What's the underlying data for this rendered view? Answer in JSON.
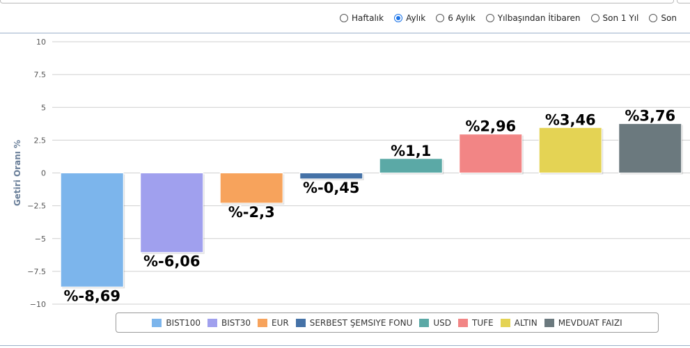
{
  "periods": [
    {
      "label": "Haftalık",
      "checked": false
    },
    {
      "label": "Aylık",
      "checked": true
    },
    {
      "label": "6 Aylık",
      "checked": false
    },
    {
      "label": "Yılbaşından İtibaren",
      "checked": false
    },
    {
      "label": "Son 1 Yıl",
      "checked": false
    },
    {
      "label": "Son",
      "checked": false
    }
  ],
  "chart_data": {
    "type": "bar",
    "ylabel": "Getiri Oranı %",
    "ylim": [
      -10,
      10
    ],
    "yticks": [
      "10",
      "7.5",
      "5",
      "2.5",
      "0",
      "−2.5",
      "−5",
      "−7.5",
      "−10"
    ],
    "grid": true,
    "legend_position": "bottom",
    "series": [
      {
        "name": "BIST100",
        "value": -8.69,
        "label": "%-8,69",
        "color": "#7cb5ec"
      },
      {
        "name": "BIST30",
        "value": -6.06,
        "label": "%-6,06",
        "color": "#a0a0ee"
      },
      {
        "name": "EUR",
        "value": -2.3,
        "label": "%-2,3",
        "color": "#f7a35c"
      },
      {
        "name": "SERBEST ŞEMSIYE FONU",
        "value": -0.45,
        "label": "%-0,45",
        "color": "#4572a7"
      },
      {
        "name": "USD",
        "value": 1.1,
        "label": "%1,1",
        "color": "#5ba9a6"
      },
      {
        "name": "TUFE",
        "value": 2.96,
        "label": "%2,96",
        "color": "#f28585"
      },
      {
        "name": "ALTIN",
        "value": 3.46,
        "label": "%3,46",
        "color": "#e4d354"
      },
      {
        "name": "MEVDUAT FAIZI",
        "value": 3.76,
        "label": "%3,76",
        "color": "#6b797e"
      }
    ]
  }
}
